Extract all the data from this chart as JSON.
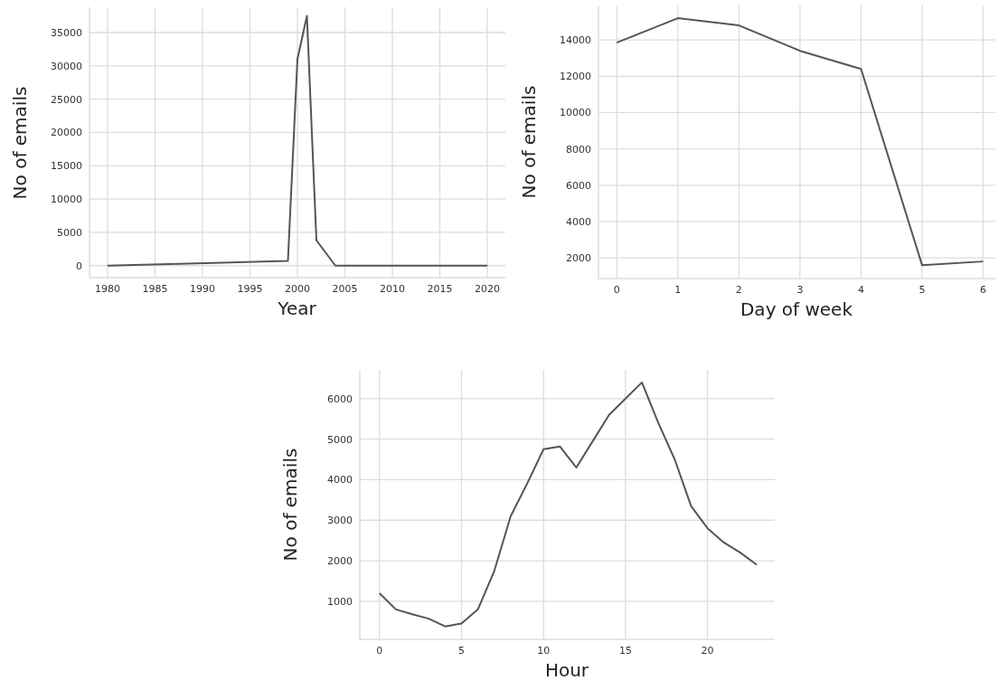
{
  "chart_data": [
    {
      "type": "line",
      "xlabel": "Year",
      "ylabel": "No of emails",
      "color": "#555555",
      "grid": true,
      "x": [
        1980,
        1999,
        2000,
        2001,
        2002,
        2004,
        2020
      ],
      "values": [
        0,
        700,
        31000,
        37500,
        3800,
        0,
        0
      ],
      "xlim": [
        1978.1,
        2021.9
      ],
      "xticks": [
        1980,
        1985,
        1990,
        1995,
        2000,
        2005,
        2010,
        2015,
        2020
      ],
      "ylim": [
        -1800,
        38800
      ],
      "yticks": [
        0,
        5000,
        10000,
        15000,
        20000,
        25000,
        30000,
        35000
      ]
    },
    {
      "type": "line",
      "xlabel": "Day of week",
      "ylabel": "No of emails",
      "color": "#555555",
      "grid": true,
      "x": [
        0,
        1,
        2,
        3,
        4,
        5,
        6
      ],
      "values": [
        13850,
        15200,
        14800,
        13400,
        12400,
        1600,
        1800
      ],
      "xlim": [
        -0.3,
        6.2
      ],
      "xticks": [
        0,
        1,
        2,
        3,
        4,
        5,
        6
      ],
      "ylim": [
        860,
        15900
      ],
      "yticks": [
        2000,
        4000,
        6000,
        8000,
        10000,
        12000,
        14000
      ]
    },
    {
      "type": "line",
      "xlabel": "Hour",
      "ylabel": "No of emails",
      "color": "#555555",
      "grid": true,
      "x": [
        0,
        1,
        2,
        3,
        4,
        5,
        6,
        7,
        8,
        9,
        10,
        11,
        12,
        13,
        14,
        15,
        16,
        17,
        18,
        19,
        20,
        21,
        22,
        23
      ],
      "values": [
        1200,
        800,
        680,
        570,
        380,
        450,
        800,
        1750,
        3100,
        3900,
        4750,
        4820,
        4300,
        4950,
        5600,
        6000,
        6400,
        5400,
        4500,
        3350,
        2800,
        2450,
        2200,
        1900
      ],
      "xlim": [
        -1.2,
        24.1
      ],
      "xticks": [
        0,
        5,
        10,
        15,
        20
      ],
      "ylim": [
        60,
        6710
      ],
      "yticks": [
        1000,
        2000,
        3000,
        4000,
        5000,
        6000
      ]
    }
  ]
}
